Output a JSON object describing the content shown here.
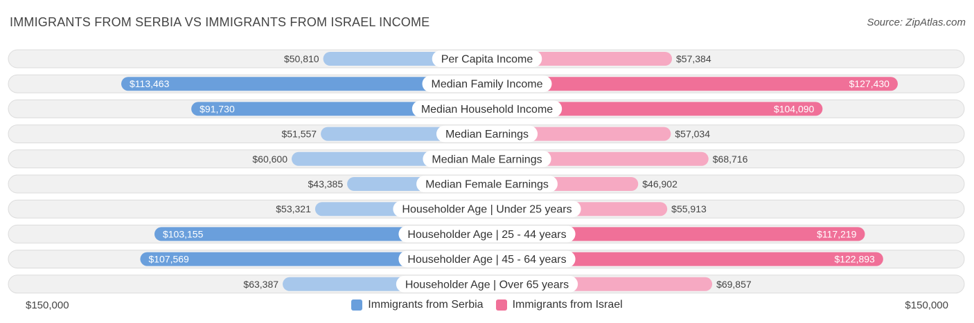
{
  "header": {
    "title": "IMMIGRANTS FROM SERBIA VS IMMIGRANTS FROM ISRAEL INCOME",
    "source": "Source: ZipAtlas.com"
  },
  "axis": {
    "left_label": "$150,000",
    "right_label": "$150,000"
  },
  "colors": {
    "serbia_dark": "#6a9fdc",
    "serbia_light": "#a7c7eb",
    "israel_dark": "#f07098",
    "israel_light": "#f6a9c2",
    "row_bg": "#f1f1f1",
    "row_border": "#dcdcdc"
  },
  "chart_data": {
    "type": "bar",
    "orientation": "horizontal-diverging",
    "title": "IMMIGRANTS FROM SERBIA VS IMMIGRANTS FROM ISRAEL INCOME",
    "xlim": [
      0,
      150000
    ],
    "categories": [
      "Per Capita Income",
      "Median Family Income",
      "Median Household Income",
      "Median Earnings",
      "Median Male Earnings",
      "Median Female Earnings",
      "Householder Age | Under 25 years",
      "Householder Age | 25 - 44 years",
      "Householder Age | 45 - 64 years",
      "Householder Age | Over 65 years"
    ],
    "series": [
      {
        "name": "Immigrants from Serbia",
        "side": "left",
        "values": [
          50810,
          113463,
          91730,
          51557,
          60600,
          43385,
          53321,
          103155,
          107569,
          63387
        ],
        "labels": [
          "$50,810",
          "$113,463",
          "$91,730",
          "$51,557",
          "$60,600",
          "$43,385",
          "$53,321",
          "$103,155",
          "$107,569",
          "$63,387"
        ]
      },
      {
        "name": "Immigrants from Israel",
        "side": "right",
        "values": [
          57384,
          127430,
          104090,
          57034,
          68716,
          46902,
          55913,
          117219,
          122893,
          69857
        ],
        "labels": [
          "$57,384",
          "$127,430",
          "$104,090",
          "$57,034",
          "$68,716",
          "$46,902",
          "$55,913",
          "$117,219",
          "$122,893",
          "$69,857"
        ]
      }
    ],
    "legend": [
      "Immigrants from Serbia",
      "Immigrants from Israel"
    ],
    "legend_position": "bottom-center"
  }
}
